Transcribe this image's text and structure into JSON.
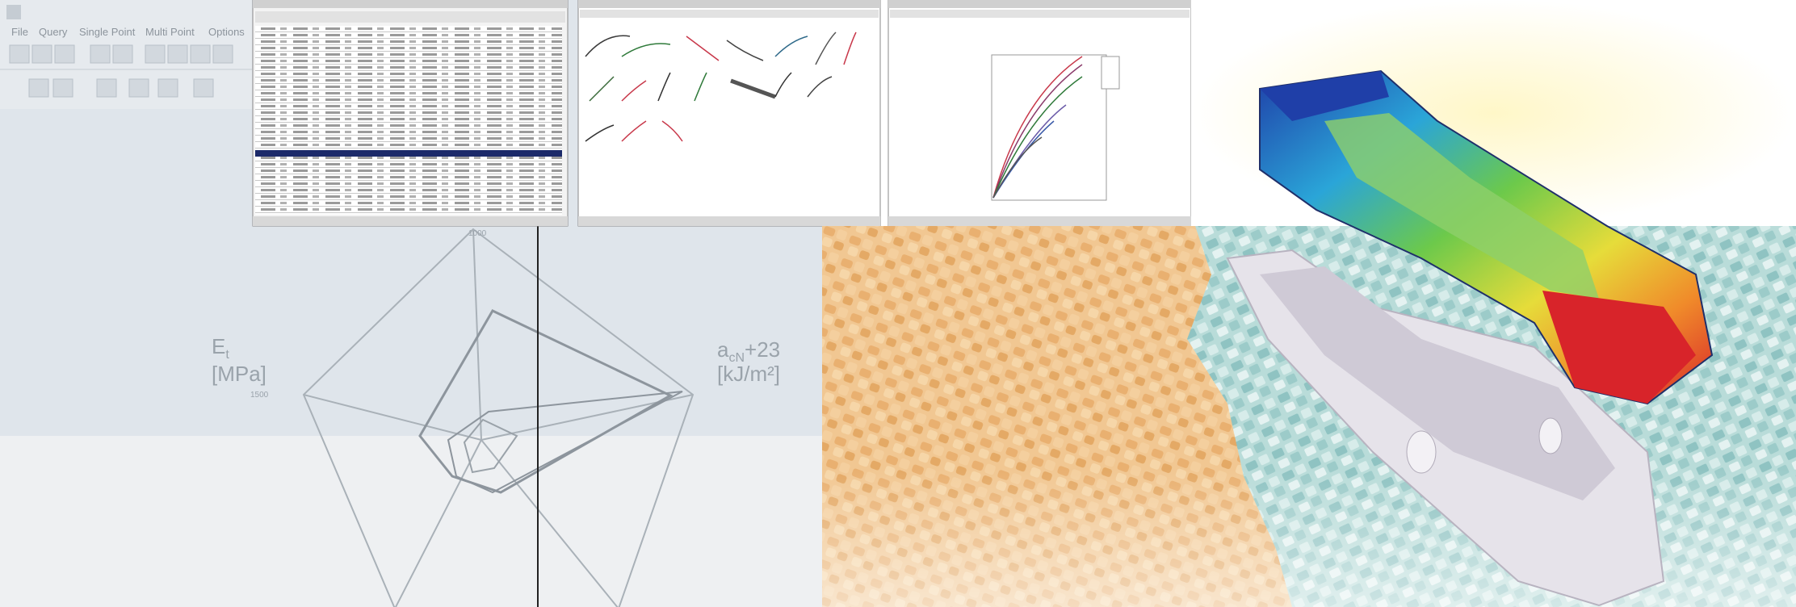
{
  "menu": {
    "items": [
      "File",
      "Query",
      "Single Point",
      "Multi Point",
      "Options"
    ]
  },
  "radar": {
    "left_label": {
      "symbol": "E",
      "subscript": "t",
      "unit": "[MPa]"
    },
    "right_label": {
      "symbol": "a",
      "subscript": "cN",
      "suffix": "+23",
      "unit": "[kJ/m²]"
    },
    "top_tick": "1000",
    "left_tick": "1500"
  }
}
